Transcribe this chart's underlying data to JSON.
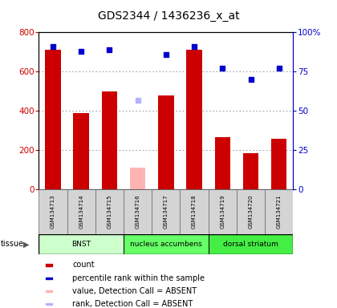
{
  "title": "GDS2344 / 1436236_x_at",
  "samples": [
    "GSM134713",
    "GSM134714",
    "GSM134715",
    "GSM134716",
    "GSM134717",
    "GSM134718",
    "GSM134719",
    "GSM134720",
    "GSM134721"
  ],
  "count_values": [
    710,
    390,
    500,
    null,
    480,
    710,
    265,
    185,
    260
  ],
  "absent_value": [
    null,
    null,
    null,
    110,
    null,
    null,
    null,
    null,
    null
  ],
  "rank_values": [
    91,
    88,
    89,
    null,
    86,
    91,
    77,
    70,
    77
  ],
  "absent_rank": [
    null,
    null,
    null,
    57,
    null,
    null,
    null,
    null,
    null
  ],
  "tissues": [
    {
      "label": "BNST",
      "start": 0,
      "end": 3,
      "color": "#ccffcc"
    },
    {
      "label": "nucleus accumbens",
      "start": 3,
      "end": 6,
      "color": "#66ff66"
    },
    {
      "label": "dorsal striatum",
      "start": 6,
      "end": 9,
      "color": "#44ee44"
    }
  ],
  "ylim_left": [
    0,
    800
  ],
  "ylim_right": [
    0,
    100
  ],
  "bar_color": "#cc0000",
  "absent_bar_color": "#ffb3b3",
  "rank_color": "#0000cc",
  "absent_rank_color": "#b3b3ff",
  "grid_color": "#888888",
  "tick_color_left": "#cc0000",
  "tick_color_right": "#0000cc",
  "yticks_left": [
    0,
    200,
    400,
    600,
    800
  ],
  "yticks_right": [
    0,
    25,
    50,
    75,
    100
  ],
  "ytick_labels_right": [
    "0",
    "25",
    "50",
    "75",
    "100%"
  ],
  "legend_items": [
    {
      "color": "#cc0000",
      "label": "count"
    },
    {
      "color": "#0000cc",
      "label": "percentile rank within the sample"
    },
    {
      "color": "#ffb3b3",
      "label": "value, Detection Call = ABSENT"
    },
    {
      "color": "#b3b3ff",
      "label": "rank, Detection Call = ABSENT"
    }
  ]
}
